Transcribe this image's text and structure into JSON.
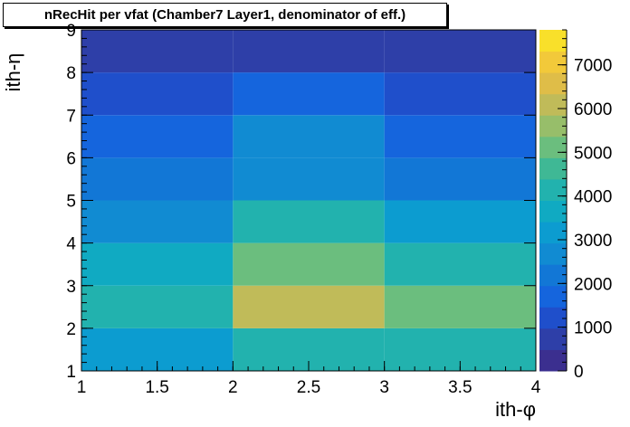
{
  "chart_data": {
    "type": "heatmap",
    "title": "nRecHit per vfat (Chamber7 Layer1, denominator of eff.)",
    "xlabel": "ith-φ",
    "ylabel": "ith-η",
    "xlim": [
      1,
      4
    ],
    "ylim": [
      1,
      9
    ],
    "x_bin_edges": [
      1,
      2,
      3,
      4
    ],
    "y_bin_edges": [
      1,
      2,
      3,
      4,
      5,
      6,
      7,
      8,
      9
    ],
    "x_ticks": [
      "1",
      "1.5",
      "2",
      "2.5",
      "3",
      "3.5",
      "4"
    ],
    "y_ticks": [
      "1",
      "2",
      "3",
      "4",
      "5",
      "6",
      "7",
      "8",
      "9"
    ],
    "z_range": [
      0,
      7800
    ],
    "z_ticks": [
      "0",
      "1000",
      "2000",
      "3000",
      "4000",
      "5000",
      "6000",
      "7000"
    ],
    "values": [
      [
        3300,
        4300,
        3900
      ],
      [
        4200,
        6300,
        5000
      ],
      [
        3500,
        5100,
        4100
      ],
      [
        2900,
        3900,
        3200
      ],
      [
        2100,
        2700,
        2300
      ],
      [
        1600,
        2600,
        1700
      ],
      [
        1100,
        1500,
        1300
      ],
      [
        700,
        700,
        700
      ]
    ],
    "values_note_row_order": "rows from eta bin 1 (bottom) to eta bin 8 (top)",
    "grid": false,
    "colorbar": "right",
    "palette": [
      "#3b2f8f",
      "#2e3fa8",
      "#1f4fcb",
      "#1565dd",
      "#1277d6",
      "#118bd2",
      "#0c9cd0",
      "#10aac2",
      "#22b2ae",
      "#3fb895",
      "#6bbe7e",
      "#97be6a",
      "#c0bb59",
      "#dfbd48",
      "#f2c93a",
      "#f9e02a"
    ]
  }
}
